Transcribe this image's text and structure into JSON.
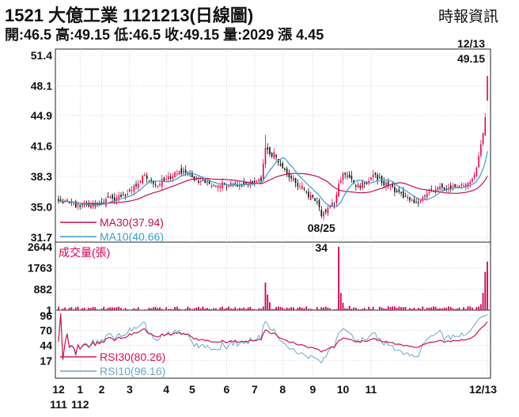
{
  "header": {
    "title": "1521  大億工業 1121213(日線圖)",
    "source": "時報資訊",
    "quote": "開:46.5 高:49.15 低:46.5 收:49.15 量:2029 漲 4.45"
  },
  "colors": {
    "up": "#e8004a",
    "down": "#111111",
    "ma30": "#c0104f",
    "ma10": "#3a9fc9",
    "rsi30": "#d0145a",
    "rsi10": "#6aa9c6",
    "volume": "#d1005a",
    "grid": "#bbbbbb"
  },
  "chart_data": [
    {
      "type": "candlestick",
      "y_ticks": [
        "51.4",
        "48.1",
        "44.9",
        "41.6",
        "38.3",
        "35.0",
        "31.7"
      ],
      "ylim": [
        31.7,
        51.4
      ],
      "legend": [
        {
          "name": "MA30(37.94)",
          "color": "#c0104f"
        },
        {
          "name": "MA10(40.66)",
          "color": "#3a9fc9"
        }
      ],
      "annotations": [
        {
          "date_label": "12/13",
          "value_label": "49.15",
          "at_index": 199,
          "value": 49.15
        },
        {
          "date_label": "08/25",
          "value_label": "34",
          "at_index": 122,
          "value": 34.0
        }
      ],
      "control_points": [
        [
          0,
          35.6
        ],
        [
          5,
          35.4
        ],
        [
          10,
          35.0
        ],
        [
          15,
          35.2
        ],
        [
          20,
          35.5
        ],
        [
          25,
          35.9
        ],
        [
          30,
          36.2
        ],
        [
          34,
          36.8
        ],
        [
          38,
          37.8
        ],
        [
          40,
          38.5
        ],
        [
          43,
          37.8
        ],
        [
          46,
          37.3
        ],
        [
          50,
          38.0
        ],
        [
          55,
          38.6
        ],
        [
          58,
          38.8
        ],
        [
          62,
          38.2
        ],
        [
          66,
          37.8
        ],
        [
          70,
          37.5
        ],
        [
          75,
          37.3
        ],
        [
          80,
          37.6
        ],
        [
          85,
          37.5
        ],
        [
          90,
          37.6
        ],
        [
          94,
          37.8
        ],
        [
          96,
          41.4
        ],
        [
          98,
          40.7
        ],
        [
          100,
          40.9
        ],
        [
          102,
          39.8
        ],
        [
          106,
          38.6
        ],
        [
          110,
          37.6
        ],
        [
          115,
          36.6
        ],
        [
          120,
          35.5
        ],
        [
          122,
          34.0
        ],
        [
          125,
          34.9
        ],
        [
          128,
          35.2
        ],
        [
          130,
          37.5
        ],
        [
          132,
          38.6
        ],
        [
          134,
          38.3
        ],
        [
          138,
          37.2
        ],
        [
          142,
          37.5
        ],
        [
          146,
          38.5
        ],
        [
          150,
          37.6
        ],
        [
          155,
          37.2
        ],
        [
          160,
          36.0
        ],
        [
          165,
          35.4
        ],
        [
          170,
          36.2
        ],
        [
          175,
          36.9
        ],
        [
          180,
          37.0
        ],
        [
          185,
          37.2
        ],
        [
          190,
          37.6
        ],
        [
          193,
          38.5
        ],
        [
          195,
          40.5
        ],
        [
          197,
          43.0
        ],
        [
          198,
          44.7
        ],
        [
          199,
          49.15
        ]
      ]
    },
    {
      "type": "bar",
      "label": "成交量(張)",
      "y_ticks": [
        "2644",
        "1763",
        "882",
        "1"
      ],
      "ylim": [
        0,
        2644
      ],
      "spikes": [
        {
          "index": 96,
          "value": 1150
        },
        {
          "index": 97,
          "value": 650
        },
        {
          "index": 98,
          "value": 330
        },
        {
          "index": 130,
          "value": 2644
        },
        {
          "index": 131,
          "value": 720
        },
        {
          "index": 132,
          "value": 310
        },
        {
          "index": 135,
          "value": 180
        },
        {
          "index": 196,
          "value": 250
        },
        {
          "index": 197,
          "value": 720
        },
        {
          "index": 198,
          "value": 1600
        },
        {
          "index": 199,
          "value": 2029
        }
      ]
    },
    {
      "type": "line",
      "y_ticks": [
        "96",
        "70",
        "44",
        "17"
      ],
      "ylim": [
        0,
        100
      ],
      "legend": [
        {
          "name": "RSI30(80.26)",
          "color": "#d0145a"
        },
        {
          "name": "RSI10(96.16)",
          "color": "#6aa9c6"
        }
      ]
    }
  ],
  "x_axis": {
    "months": [
      "12",
      "1",
      "2",
      "3",
      "4",
      "5",
      "6",
      "7",
      "8",
      "9",
      "10",
      "11",
      "12/13"
    ],
    "month_index": [
      0,
      10,
      20,
      33,
      50,
      62,
      78,
      91,
      104,
      118,
      132,
      145,
      199
    ],
    "years": [
      "111",
      "112"
    ],
    "year_index": [
      0,
      10
    ]
  }
}
